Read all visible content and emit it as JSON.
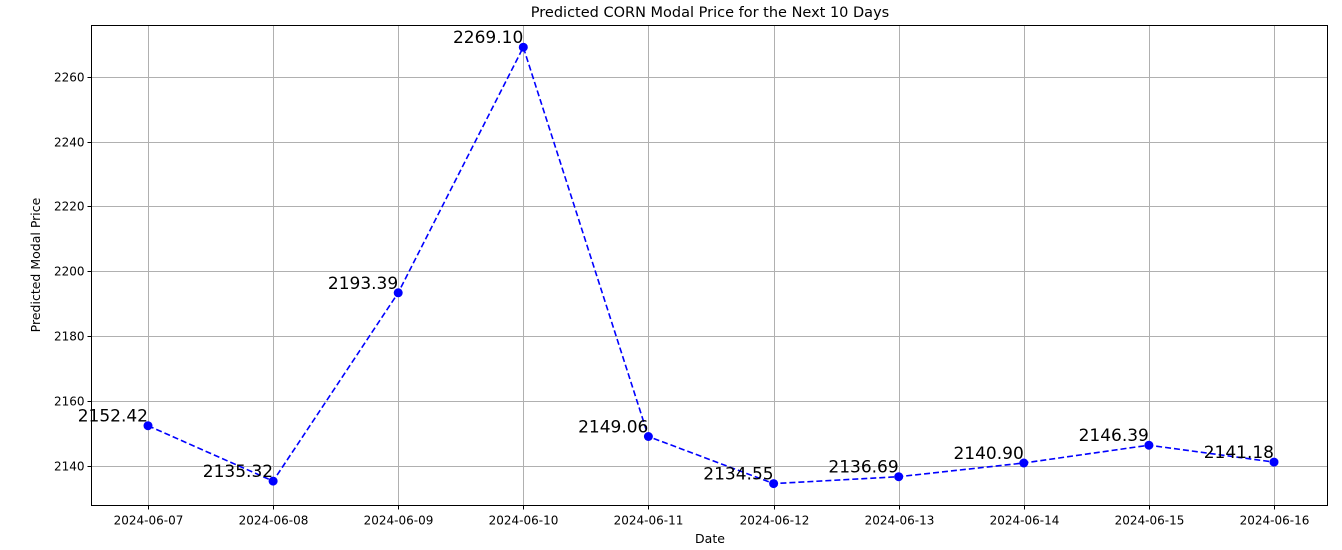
{
  "chart_data": {
    "type": "line",
    "title": "Predicted CORN Modal Price for the Next 10 Days",
    "xlabel": "Date",
    "ylabel": "Predicted Modal Price",
    "x": [
      "2024-06-07",
      "2024-06-08",
      "2024-06-09",
      "2024-06-10",
      "2024-06-11",
      "2024-06-12",
      "2024-06-13",
      "2024-06-14",
      "2024-06-15",
      "2024-06-16"
    ],
    "values": [
      2152.42,
      2135.32,
      2193.39,
      2269.1,
      2149.06,
      2134.55,
      2136.69,
      2140.9,
      2146.39,
      2141.18
    ],
    "data_labels": [
      "2152.42",
      "2135.32",
      "2193.39",
      "2269.10",
      "2149.06",
      "2134.55",
      "2136.69",
      "2140.90",
      "2146.39",
      "2141.18"
    ],
    "yticks": [
      2140,
      2160,
      2180,
      2200,
      2220,
      2240,
      2260
    ],
    "ylim": [
      2127.8,
      2275.8
    ],
    "grid": true,
    "line_style": "dashed",
    "marker": "circle",
    "color": "#0000ff"
  }
}
